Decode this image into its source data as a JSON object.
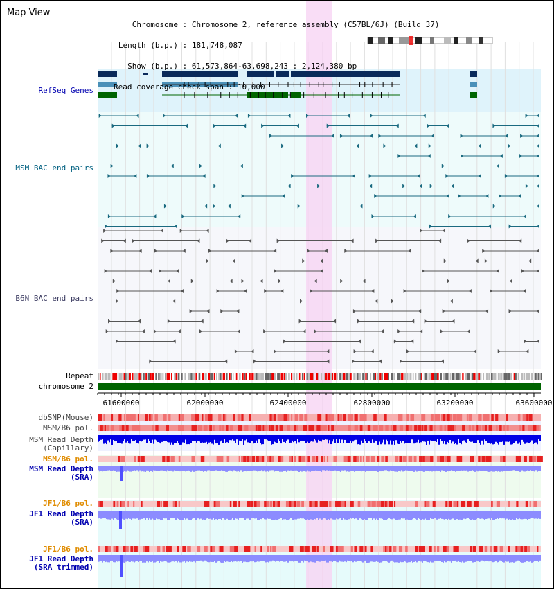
{
  "title": "Map View",
  "info": [
    {
      "key": "Chromosome",
      "value": "Chromosome 2, reference assembly (C57BL/6J) (Build 37)"
    },
    {
      "key": "Length (b.p.)",
      "value": "181,748,087"
    },
    {
      "key": "Show (b.p.)",
      "value": "61,573,864-63,698,243 : 2,124,380 bp"
    },
    {
      "key": "Read coverage check span",
      "value": "10,000"
    }
  ],
  "tracks": {
    "refseq": "RefSeq Genes",
    "msm_bac": "MSM BAC end pairs",
    "b6n_bac": "B6N BAC end pairs",
    "repeat": "Repeat",
    "chromosome": "chromosome 2",
    "dbsnp": "dbSNP(Mouse)",
    "msm_b6_pol_1": "MSM/B6 pol.",
    "msm_read_depth_cap": [
      "MSM Read Depth",
      "(Capillary)"
    ],
    "msm_b6_pol_2": "MSM/B6 pol.",
    "msm_read_depth_sra": [
      "MSM Read Depth",
      "(SRA)"
    ],
    "jf1_b6_pol_1": "JF1/B6 pol.",
    "jf1_read_depth_sra": [
      "JF1 Read Depth",
      "(SRA)"
    ],
    "jf1_b6_pol_2": "JF1/B6 pol.",
    "jf1_read_depth_trim": [
      "JF1 Read Depth",
      "(SRA trimmed)"
    ]
  },
  "axis_ticks": [
    "61600000",
    "62000000",
    "62400000",
    "62800000",
    "63200000",
    "63600000"
  ],
  "colors": {
    "refseq_bg": "#dff3fb",
    "bac_bg": "#eefbfb",
    "b6n_bg": "#f6f7fb",
    "highlight": "#f7d4f4",
    "chromosome": "#006400",
    "depth_blue": "#0000e6",
    "sra_blue": "#8c8cff",
    "label_blue": "#0000b0",
    "label_teal": "#006080",
    "label_orange": "#e08c00"
  }
}
